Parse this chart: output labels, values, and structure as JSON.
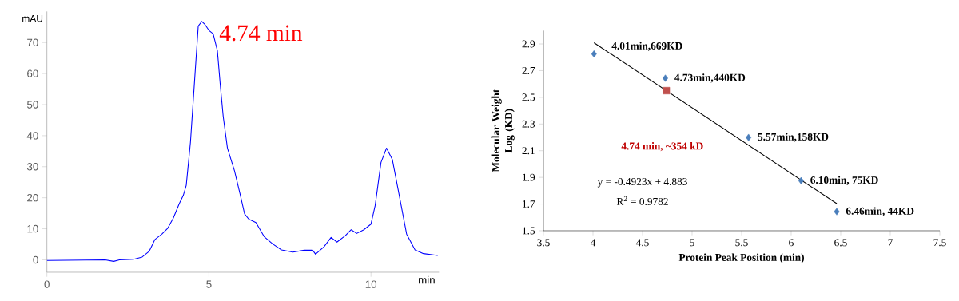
{
  "chart_data": [
    {
      "type": "line",
      "xlabel": "min",
      "ylabel": "mAU",
      "xlim": [
        0,
        12.1
      ],
      "ylim": [
        -4,
        80
      ],
      "xticks": [
        0,
        5,
        10
      ],
      "yticks": [
        0,
        10,
        20,
        30,
        40,
        50,
        60,
        70
      ],
      "grid": false,
      "legend": false,
      "marker": "none",
      "annotations": [
        {
          "text": "4.74 min",
          "x": 4.74,
          "y": 76.8
        }
      ],
      "series": [
        {
          "color": "#0000ff",
          "x": [
            0,
            1.8,
            2.06,
            2.24,
            2.68,
            2.94,
            3.16,
            3.33,
            3.55,
            3.73,
            3.9,
            4.08,
            4.21,
            4.3,
            4.43,
            4.56,
            4.67,
            4.78,
            4.87,
            5.0,
            5.13,
            5.26,
            5.35,
            5.44,
            5.57,
            5.79,
            5.96,
            6.1,
            6.23,
            6.45,
            6.71,
            6.97,
            7.24,
            7.59,
            7.94,
            8.2,
            8.29,
            8.55,
            8.77,
            8.95,
            9.21,
            9.39,
            9.56,
            9.78,
            10.0,
            10.13,
            10.31,
            10.48,
            10.66,
            10.83,
            11.1,
            11.36,
            11.62,
            12.06
          ],
          "values": [
            -0.2,
            0,
            -0.5,
            0,
            0.2,
            0.9,
            2.8,
            6.5,
            8.3,
            10.2,
            13.4,
            18,
            20.8,
            24,
            37.9,
            58.2,
            75.3,
            76.8,
            75.9,
            73.9,
            72.8,
            67.4,
            56.3,
            46.2,
            36,
            28.6,
            21.2,
            14.8,
            13.1,
            12,
            7.4,
            5.1,
            3.2,
            2.5,
            3.1,
            3.1,
            1.8,
            4.2,
            7.2,
            5.7,
            7.8,
            9.7,
            8.5,
            9.7,
            11.5,
            17.5,
            31.4,
            36,
            32.3,
            23.1,
            8.3,
            3.2,
            2,
            1.4
          ]
        }
      ]
    },
    {
      "type": "scatter",
      "xlabel": "Protein Peak Position (min)",
      "ylabel": "Molecular Weight Log (KD)",
      "xlim": [
        3.5,
        7.5
      ],
      "ylim": [
        1.5,
        3.0
      ],
      "xticks": [
        3.5,
        4,
        4.5,
        5,
        5.5,
        6,
        6.5,
        7,
        7.5
      ],
      "yticks": [
        1.5,
        1.7,
        1.9,
        2.1,
        2.3,
        2.5,
        2.7,
        2.9
      ],
      "grid": false,
      "legend": false,
      "annotations": [
        "4.74 min, ~354 kD",
        "y = -0.4923x + 4.883",
        "R$^{2}$ = 0.9782"
      ],
      "series": [
        {
          "type": "scatter",
          "marker": "diamond",
          "color": "#4a7ebb",
          "x": [
            4.01,
            4.73,
            5.57,
            6.1,
            6.46
          ],
          "values": [
            2.825,
            2.643,
            2.199,
            1.875,
            1.643
          ],
          "value_labels": [
            "4.01min,669KD",
            "4.73min,440KD",
            "5.57min,158KD",
            "6.10min, 75KD",
            "6.46min, 44KD"
          ]
        },
        {
          "type": "scatter",
          "marker": "square",
          "color": "#c0504d",
          "x": [
            4.74
          ],
          "values": [
            2.55
          ]
        },
        {
          "type": "line",
          "marker": "none",
          "color": "#000000",
          "x": [
            4.01,
            6.46
          ],
          "values": [
            2.909,
            1.703
          ]
        }
      ]
    }
  ]
}
